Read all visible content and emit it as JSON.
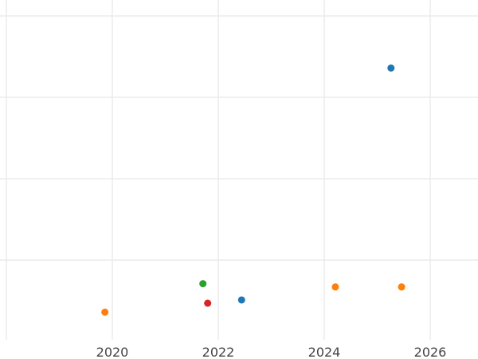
{
  "chart_data": {
    "type": "scatter",
    "title": "",
    "xlabel": "",
    "ylabel": "",
    "x_ticks": [
      2018,
      2020,
      2022,
      2024,
      2026
    ],
    "x_tick_labels": [
      "",
      "2020",
      "2022",
      "2024",
      "2026"
    ],
    "xlim": [
      2017.9,
      2026.9
    ],
    "y_ticks": [
      1,
      2,
      3,
      4
    ],
    "ylim": [
      0.0,
      4.2
    ],
    "grid": true,
    "points": [
      {
        "x": 2025.26,
        "y": 3.36,
        "color": "#1f77b4"
      },
      {
        "x": 2019.86,
        "y": 0.36,
        "color": "#ff7f0e"
      },
      {
        "x": 2021.71,
        "y": 0.71,
        "color": "#2ca02c"
      },
      {
        "x": 2021.8,
        "y": 0.47,
        "color": "#d62728"
      },
      {
        "x": 2022.44,
        "y": 0.51,
        "color": "#1f77b4"
      },
      {
        "x": 2024.21,
        "y": 0.67,
        "color": "#ff7f0e"
      },
      {
        "x": 2025.46,
        "y": 0.67,
        "color": "#ff7f0e"
      }
    ]
  }
}
